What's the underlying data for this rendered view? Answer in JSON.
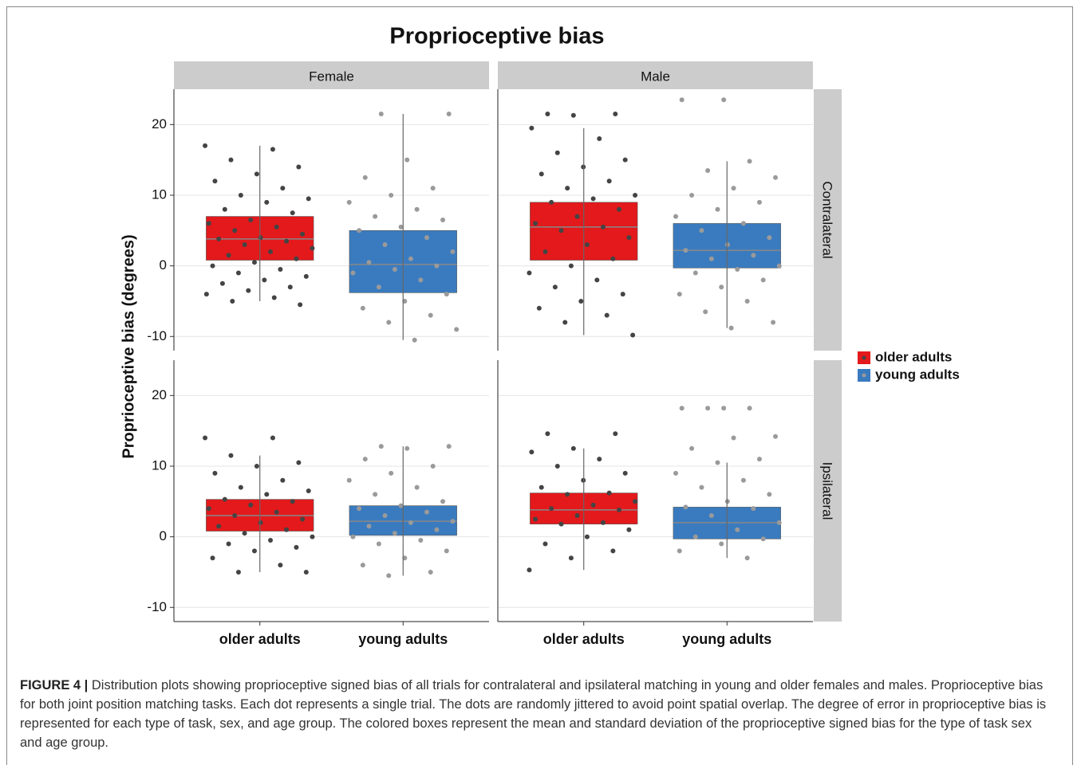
{
  "chart_data": {
    "type": "box",
    "title": "Proprioceptive bias",
    "ylabel": "Proprioceptive bias (degrees)",
    "categories": [
      "older adults",
      "young adults"
    ],
    "series": [
      {
        "name": "older adults",
        "color": "#e3191c",
        "point_color": "#444444"
      },
      {
        "name": "young adults",
        "color": "#3a7bbf",
        "point_color": "#9a9a9a"
      }
    ],
    "facet_cols": [
      "Female",
      "Male"
    ],
    "ylim": [
      -12,
      25
    ],
    "yticks": [
      -10,
      0,
      10,
      20
    ],
    "grid": true,
    "rows": [
      {
        "label": "Contralateral",
        "panels": [
          [
            {
              "low": -5,
              "q1": 0.8,
              "median": 3.8,
              "q3": 7,
              "high": 17,
              "points": [
                17,
                16.5,
                15,
                14,
                13,
                12,
                11,
                10,
                9.5,
                9,
                8,
                7.5,
                6.5,
                6,
                5.5,
                5,
                4.5,
                4,
                3.8,
                3.5,
                3,
                2.5,
                2,
                1.5,
                1,
                0.5,
                0,
                -0.5,
                -1,
                -1.5,
                -2,
                -2.5,
                -3,
                -3.5,
                -4,
                -4.5,
                -5,
                -5.5
              ]
            },
            {
              "low": -10.5,
              "q1": -3.8,
              "median": 0.2,
              "q3": 5,
              "high": 21.5,
              "points": [
                21.5,
                21.5,
                15,
                12.5,
                11,
                10,
                9,
                8,
                7,
                6.5,
                5.5,
                5,
                4,
                3,
                2,
                1,
                0.5,
                0,
                -0.5,
                -1,
                -2,
                -3,
                -4,
                -5,
                -6,
                -7,
                -8,
                -9,
                -10.5
              ]
            }
          ],
          [
            {
              "low": -9.8,
              "q1": 0.8,
              "median": 5.5,
              "q3": 9,
              "high": 19.5,
              "points": [
                21.5,
                21.5,
                21.3,
                19.5,
                18,
                16,
                15,
                14,
                13,
                12,
                11,
                10,
                9.5,
                9,
                8,
                7,
                6,
                5.5,
                5,
                4,
                3,
                2,
                1,
                0,
                -1,
                -2,
                -3,
                -4,
                -5,
                -6,
                -7,
                -8,
                -9.8
              ]
            },
            {
              "low": -8.8,
              "q1": -0.3,
              "median": 2.2,
              "q3": 6,
              "high": 14.8,
              "points": [
                23.5,
                23.5,
                14.8,
                13.5,
                12.5,
                11,
                10,
                9,
                8,
                7,
                6,
                5,
                4,
                3,
                2.2,
                1.5,
                1,
                0,
                -0.5,
                -1,
                -2,
                -3,
                -4,
                -5,
                -6.5,
                -8,
                -8.8
              ]
            }
          ]
        ]
      },
      {
        "label": "Ipsilateral",
        "panels": [
          [
            {
              "low": -5,
              "q1": 0.8,
              "median": 3,
              "q3": 5.3,
              "high": 11.5,
              "points": [
                14,
                14,
                11.5,
                10.5,
                10,
                9,
                8,
                7,
                6.5,
                6,
                5.3,
                5,
                4.5,
                4,
                3.5,
                3,
                2.5,
                2,
                1.5,
                1,
                0.5,
                0,
                -0.5,
                -1,
                -1.5,
                -2,
                -3,
                -4,
                -5,
                -5
              ]
            },
            {
              "low": -5.5,
              "q1": 0.2,
              "median": 2.2,
              "q3": 4.4,
              "high": 12.8,
              "points": [
                12.8,
                12.8,
                12.5,
                11,
                10,
                9,
                8,
                7,
                6,
                5,
                4.4,
                4,
                3.5,
                3,
                2.2,
                2,
                1.5,
                1,
                0.5,
                0,
                -0.5,
                -1,
                -2,
                -3,
                -4,
                -5,
                -5.5
              ]
            }
          ],
          [
            {
              "low": -4.7,
              "q1": 1.8,
              "median": 3.8,
              "q3": 6.2,
              "high": 12.5,
              "points": [
                14.6,
                14.6,
                12.5,
                12,
                11,
                10,
                9,
                8,
                7,
                6.2,
                6,
                5,
                4.5,
                4,
                3.8,
                3,
                2.5,
                2,
                1.8,
                1,
                0,
                -1,
                -2,
                -3,
                -4.7
              ]
            },
            {
              "low": -3,
              "q1": -0.3,
              "median": 2,
              "q3": 4.2,
              "high": 10.5,
              "points": [
                18.2,
                18.2,
                18.2,
                18.2,
                14.2,
                14,
                12.5,
                11,
                10.5,
                9,
                8,
                7,
                6,
                5,
                4.2,
                4,
                3,
                2,
                1,
                0,
                -0.3,
                -1,
                -2,
                -3
              ]
            }
          ]
        ]
      }
    ]
  },
  "figure_label": "FIGURE 4 |",
  "caption": "Distribution plots showing proprioceptive signed bias of all trials for contralateral and ipsilateral matching in young and older females and males. Proprioceptive bias for both joint position matching tasks. Each dot represents a single trial. The dots are randomly jittered to avoid point spatial overlap. The degree of error in proprioceptive bias is represented for each type of task, sex, and age group. The colored boxes represent the mean and standard deviation of the proprioceptive signed bias for the type of task sex and age group."
}
